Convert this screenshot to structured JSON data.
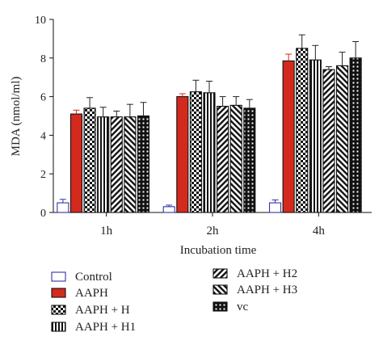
{
  "chart_data": {
    "type": "bar",
    "xlabel": "Incubation time",
    "ylabel": "MDA (nmol/ml)",
    "ylim": [
      0,
      10
    ],
    "yticks": [
      0,
      2,
      4,
      6,
      8,
      10
    ],
    "categories": [
      "1h",
      "2h",
      "4h"
    ],
    "legend_placement": "bottom",
    "grid": false,
    "series": [
      {
        "name": "Control",
        "pattern": "open",
        "color": "#3333aa",
        "values": [
          0.5,
          0.3,
          0.5
        ],
        "errors": [
          0.18,
          0.08,
          0.15
        ]
      },
      {
        "name": "AAPH",
        "pattern": "solid",
        "color": "#d42a1e",
        "values": [
          5.1,
          6.0,
          7.85
        ],
        "errors": [
          0.2,
          0.15,
          0.35
        ]
      },
      {
        "name": "AAPH + H",
        "pattern": "checker",
        "color": "#111111",
        "values": [
          5.4,
          6.25,
          8.5
        ],
        "errors": [
          0.55,
          0.6,
          0.7
        ]
      },
      {
        "name": "AAPH + H1",
        "pattern": "vertical",
        "color": "#111111",
        "values": [
          4.95,
          6.2,
          7.9
        ],
        "errors": [
          0.5,
          0.6,
          0.75
        ]
      },
      {
        "name": "AAPH + H2",
        "pattern": "diag-right",
        "color": "#111111",
        "values": [
          4.95,
          5.5,
          7.4
        ],
        "errors": [
          0.3,
          0.5,
          0.15
        ]
      },
      {
        "name": "AAPH + H3",
        "pattern": "diag-left",
        "color": "#111111",
        "values": [
          4.95,
          5.55,
          7.6
        ],
        "errors": [
          0.65,
          0.45,
          0.7
        ]
      },
      {
        "name": "vc",
        "pattern": "grid",
        "color": "#111111",
        "values": [
          5.0,
          5.4,
          8.0
        ],
        "errors": [
          0.7,
          0.45,
          0.85
        ]
      }
    ]
  }
}
